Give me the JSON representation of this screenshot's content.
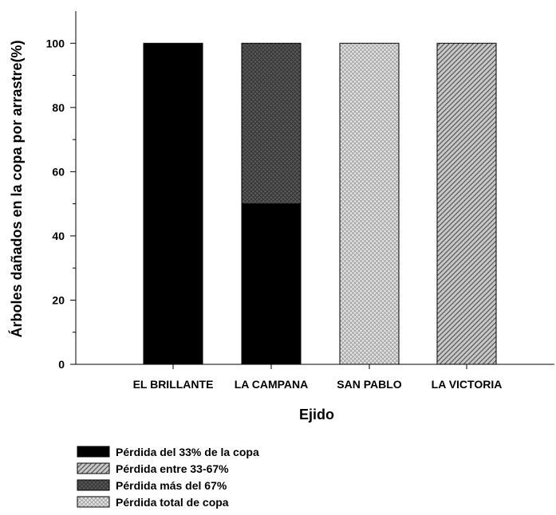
{
  "chart_data": {
    "type": "bar",
    "stacked": true,
    "xlabel": "Ejido",
    "ylabel": "Árboles dañados en la copa por arrastre(%)",
    "ylim": [
      0,
      110
    ],
    "yticks": [
      0,
      20,
      40,
      60,
      80,
      100
    ],
    "categories": [
      "EL BRILLANTE",
      "LA CAMPANA",
      "SAN PABLO",
      "LA VICTORIA"
    ],
    "series": [
      {
        "name": "Pérdida del 33% de la copa",
        "values": [
          100,
          50,
          0,
          0
        ],
        "color": "#000000",
        "pattern": "solid"
      },
      {
        "name": "Pérdida entre 33-67%",
        "values": [
          0,
          0,
          0,
          100
        ],
        "color": "#c8c8c8",
        "pattern": "diagonal-lines"
      },
      {
        "name": "Pérdida más del 67%",
        "values": [
          0,
          50,
          0,
          0
        ],
        "color": "#5a5a5a",
        "pattern": "dark-crosshatch"
      },
      {
        "name": "Pérdida total de copa",
        "values": [
          0,
          0,
          100,
          0
        ],
        "color": "#dcdcdc",
        "pattern": "light-crosshatch"
      }
    ],
    "grid": false,
    "legend_position": "bottom-left"
  }
}
